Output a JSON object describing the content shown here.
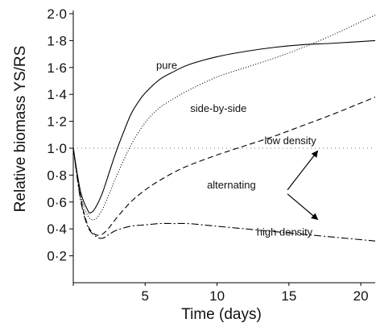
{
  "chart_data": {
    "type": "line",
    "xlabel": "Time (days)",
    "ylabel": "Relative biomass YS/RS",
    "xlim": [
      0,
      21
    ],
    "ylim": [
      0,
      2.0
    ],
    "xticks": [
      {
        "value": 5,
        "label": "5"
      },
      {
        "value": 10,
        "label": "10"
      },
      {
        "value": 15,
        "label": "15"
      },
      {
        "value": 20,
        "label": "20"
      }
    ],
    "yticks": [
      {
        "value": 0.2,
        "label": "0·2"
      },
      {
        "value": 0.4,
        "label": "0·4"
      },
      {
        "value": 0.6,
        "label": "0·6"
      },
      {
        "value": 0.8,
        "label": "0·8"
      },
      {
        "value": 1.0,
        "label": "1·0"
      },
      {
        "value": 1.2,
        "label": "1·2"
      },
      {
        "value": 1.4,
        "label": "1·4"
      },
      {
        "value": 1.6,
        "label": "1·6"
      },
      {
        "value": 1.8,
        "label": "1·8"
      },
      {
        "value": 2.0,
        "label": "2·0"
      }
    ],
    "reference_line": {
      "y": 1.0,
      "style": "dotted"
    },
    "series": [
      {
        "name": "pure",
        "style": "solid",
        "x": [
          0,
          0.5,
          1.0,
          1.2,
          1.5,
          2.0,
          2.5,
          3.0,
          3.5,
          4.0,
          4.5,
          5,
          6,
          7,
          8,
          10,
          12,
          14,
          16,
          18,
          21
        ],
        "y": [
          1.0,
          0.68,
          0.54,
          0.52,
          0.55,
          0.66,
          0.82,
          0.98,
          1.12,
          1.25,
          1.34,
          1.41,
          1.51,
          1.57,
          1.62,
          1.68,
          1.72,
          1.75,
          1.77,
          1.78,
          1.8
        ]
      },
      {
        "name": "side-by-side",
        "style": "dotted",
        "x": [
          0,
          0.5,
          1.0,
          1.5,
          2.0,
          2.5,
          3.0,
          4.0,
          5,
          6,
          7,
          8,
          10,
          12,
          14,
          16,
          18,
          21
        ],
        "y": [
          1.0,
          0.66,
          0.5,
          0.47,
          0.54,
          0.66,
          0.79,
          1.02,
          1.19,
          1.3,
          1.37,
          1.43,
          1.53,
          1.6,
          1.67,
          1.75,
          1.84,
          1.99
        ]
      },
      {
        "name": "low density",
        "style": "dashed",
        "x": [
          0,
          0.5,
          1.0,
          1.5,
          2.0,
          2.5,
          3.0,
          4.0,
          5,
          6,
          7,
          8,
          10,
          12,
          14,
          16,
          18,
          21
        ],
        "y": [
          1.0,
          0.64,
          0.43,
          0.36,
          0.36,
          0.41,
          0.48,
          0.6,
          0.69,
          0.76,
          0.82,
          0.87,
          0.95,
          1.02,
          1.09,
          1.17,
          1.25,
          1.38
        ]
      },
      {
        "name": "high density",
        "style": "dash-dot",
        "x": [
          0,
          0.5,
          1.0,
          1.5,
          2.0,
          2.5,
          3.0,
          4.0,
          5,
          6,
          7,
          8,
          9,
          10,
          12,
          14,
          16,
          18,
          21
        ],
        "y": [
          1.0,
          0.62,
          0.42,
          0.35,
          0.33,
          0.36,
          0.39,
          0.42,
          0.43,
          0.44,
          0.44,
          0.44,
          0.43,
          0.42,
          0.4,
          0.38,
          0.36,
          0.34,
          0.31
        ]
      }
    ],
    "annotations": [
      {
        "text": "pure",
        "x": 6.5,
        "y": 1.59
      },
      {
        "text": "side-by-side",
        "x": 10.1,
        "y": 1.27
      },
      {
        "text": "low density",
        "x": 15.1,
        "y": 1.03
      },
      {
        "text": "alternating",
        "x": 11.0,
        "y": 0.7
      },
      {
        "text": "high density",
        "x": 14.7,
        "y": 0.35
      }
    ],
    "arrows": [
      {
        "from": [
          14.9,
          0.69
        ],
        "to": [
          17.0,
          0.98
        ]
      },
      {
        "from": [
          14.9,
          0.66
        ],
        "to": [
          17.0,
          0.47
        ]
      }
    ]
  }
}
